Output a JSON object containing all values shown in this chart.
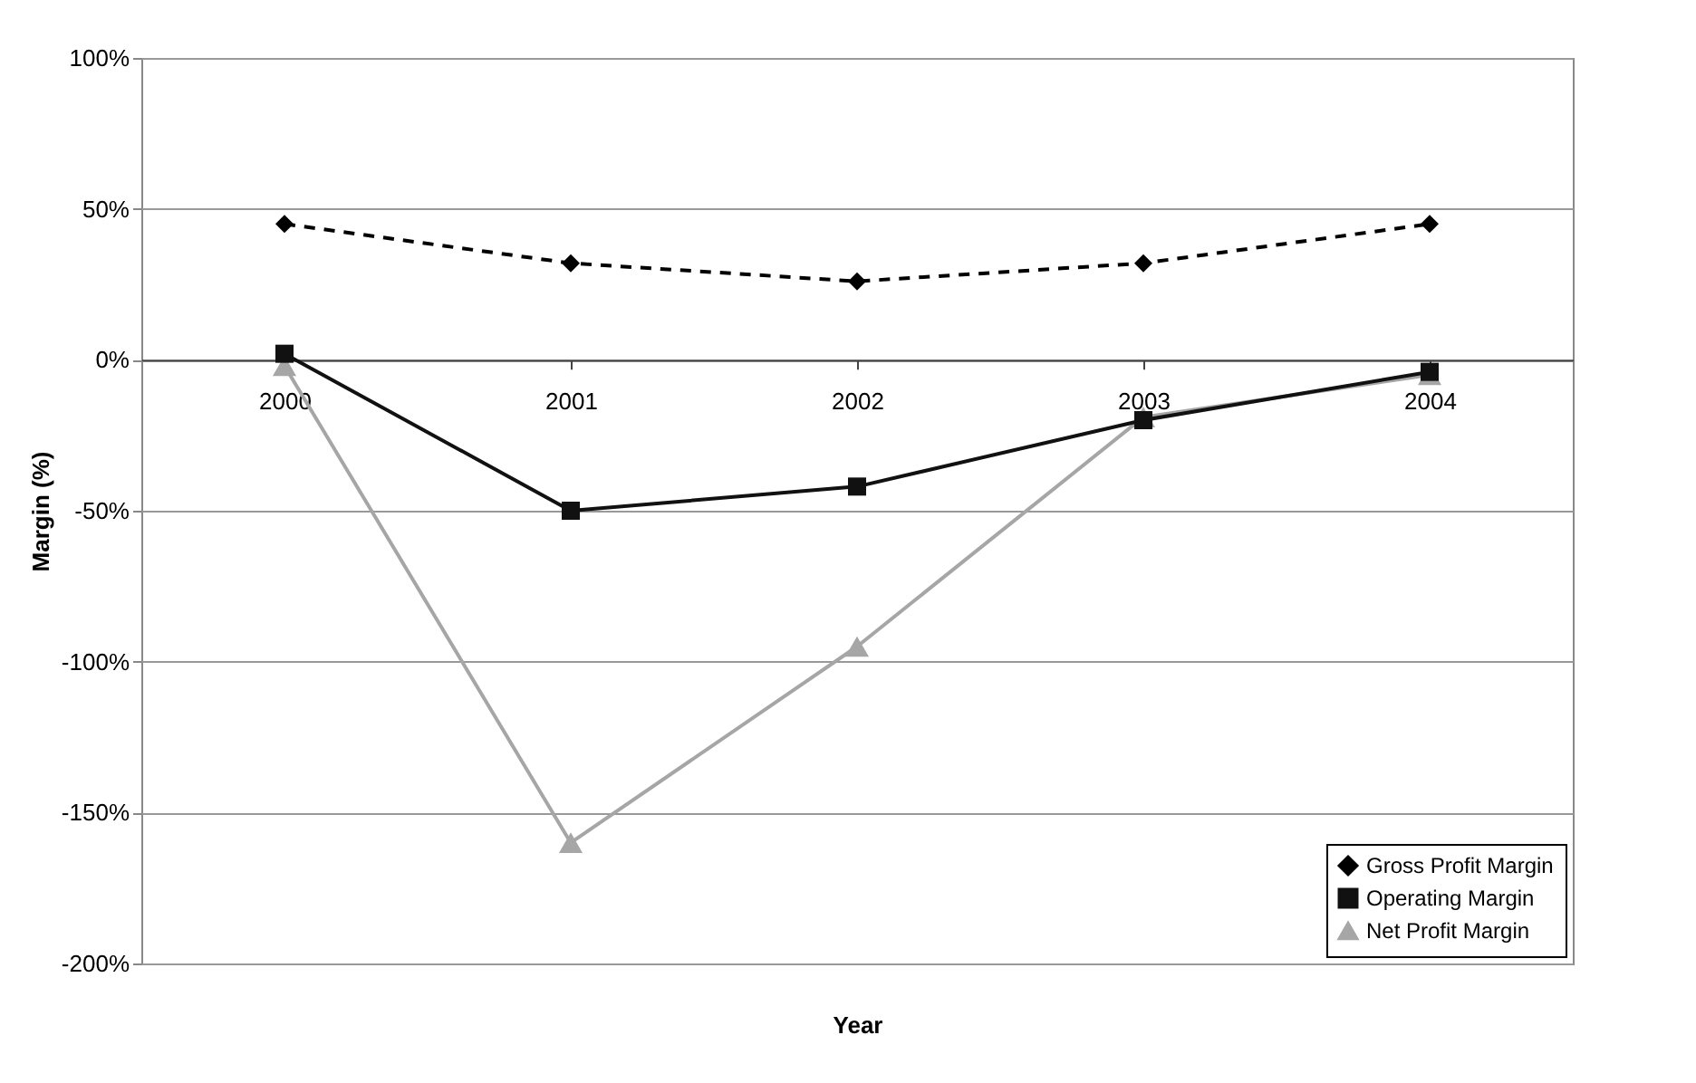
{
  "chart_data": {
    "type": "line",
    "xlabel": "Year",
    "ylabel": "Margin (%)",
    "categories": [
      "2000",
      "2001",
      "2002",
      "2003",
      "2004"
    ],
    "series": [
      {
        "name": "Gross Profit Margin",
        "color": "#000000",
        "line_style": "dashed",
        "marker": "diamond",
        "values": [
          45,
          32,
          26,
          32,
          45
        ]
      },
      {
        "name": "Operating Margin",
        "color": "#111111",
        "line_style": "solid",
        "marker": "square",
        "values": [
          2,
          -50,
          -42,
          -20,
          -4
        ]
      },
      {
        "name": "Net Profit Margin",
        "color": "#a6a6a6",
        "line_style": "solid",
        "marker": "triangle",
        "values": [
          -2,
          -160,
          -95,
          -19,
          -5
        ]
      }
    ],
    "ylim": [
      -200,
      100
    ],
    "yticks": [
      {
        "value": 100,
        "label": "100%"
      },
      {
        "value": 50,
        "label": "50%"
      },
      {
        "value": 0,
        "label": "0%"
      },
      {
        "value": -50,
        "label": "-50%"
      },
      {
        "value": -100,
        "label": "-100%"
      },
      {
        "value": -150,
        "label": "-150%"
      },
      {
        "value": -200,
        "label": "-200%"
      }
    ],
    "grid": "y",
    "legend": "bottom right"
  }
}
